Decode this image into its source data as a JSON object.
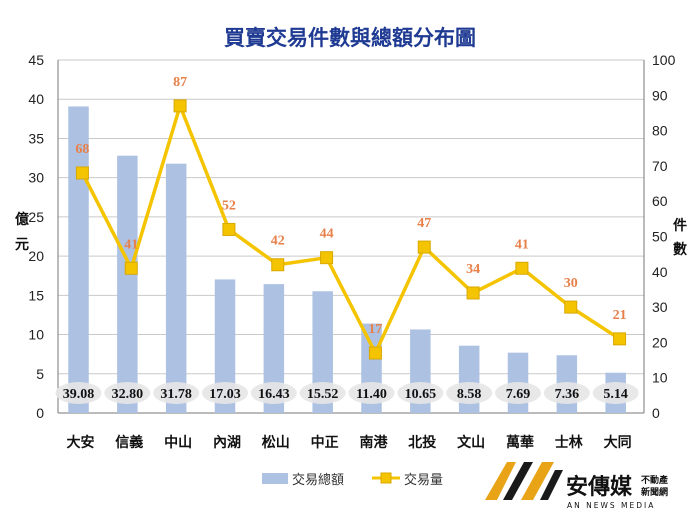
{
  "chart_data": {
    "type": "bar+line",
    "title": "買賣交易件數與總額分布圖",
    "categories": [
      "大安",
      "信義",
      "中山",
      "內湖",
      "松山",
      "中正",
      "南港",
      "北投",
      "文山",
      "萬華",
      "士林",
      "大同"
    ],
    "series": [
      {
        "name": "交易總額",
        "type": "bar",
        "axis": "left",
        "color": "#adc2e3",
        "values": [
          39.08,
          32.8,
          31.78,
          17.03,
          16.43,
          15.52,
          11.4,
          10.65,
          8.58,
          7.69,
          7.36,
          5.14
        ],
        "labels": [
          "39.08",
          "32.80",
          "31.78",
          "17.03",
          "16.43",
          "15.52",
          "11.40",
          "10.65",
          "8.58",
          "7.69",
          "7.36",
          "5.14"
        ]
      },
      {
        "name": "交易量",
        "type": "line",
        "axis": "right",
        "color": "#f5c400",
        "label_color": "#e8804a",
        "values": [
          68,
          41,
          87,
          52,
          42,
          44,
          17,
          47,
          34,
          41,
          30,
          21
        ]
      }
    ],
    "y_left": {
      "label": "億元",
      "min": 0,
      "max": 45,
      "ticks": [
        0,
        5,
        10,
        15,
        20,
        25,
        30,
        35,
        40,
        45
      ]
    },
    "y_right": {
      "label": "件數",
      "min": 0,
      "max": 100,
      "ticks": [
        0,
        10,
        20,
        30,
        40,
        50,
        60,
        70,
        80,
        90,
        100
      ]
    },
    "grid": true,
    "legend_position": "bottom-center"
  },
  "logo": {
    "brand": "安傳媒",
    "side_line1": "不動產",
    "side_line2": "新聞網",
    "english": "AN NEWS MEDIA"
  }
}
